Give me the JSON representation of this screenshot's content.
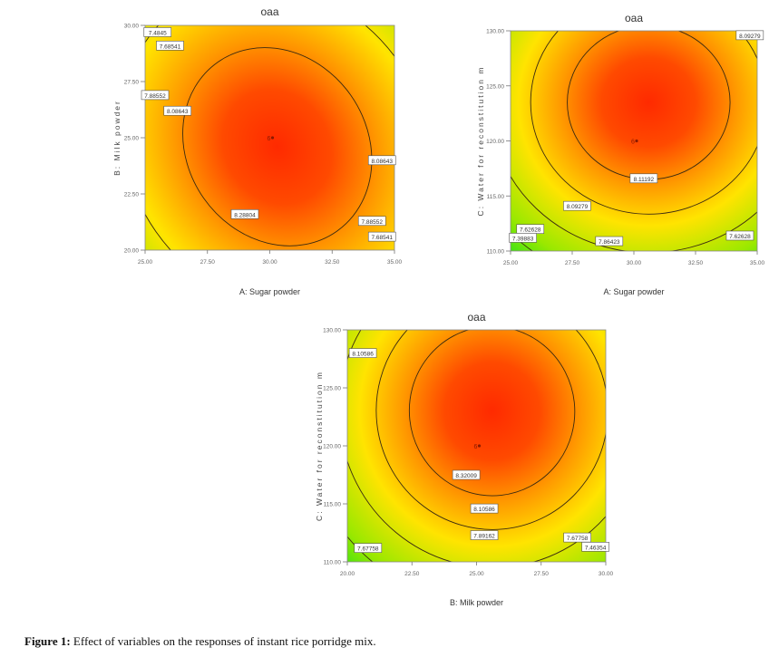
{
  "figure": {
    "caption_label": "Figure 1:",
    "caption_text": " Effect of variables on the responses of instant rice porridge mix."
  },
  "chart_data": [
    {
      "type": "heatmap",
      "subtype": "contour",
      "title": "oaa",
      "xlabel": "A: Sugar powder",
      "ylabel": "B: Milk powder",
      "xlim": [
        25.0,
        35.0
      ],
      "ylim": [
        20.0,
        30.0
      ],
      "x_ticks": [
        "25.00",
        "27.50",
        "30.00",
        "32.50",
        "35.00"
      ],
      "y_ticks": [
        "20.00",
        "22.50",
        "25.00",
        "27.50",
        "30.00"
      ],
      "optimum": {
        "x": 30.3,
        "y": 24.6
      },
      "ellipse": {
        "rx": 3.6,
        "ry": 4.6,
        "tilt_deg": -35
      },
      "center_point": {
        "x": 30.0,
        "y": 25.0,
        "label": "6"
      },
      "contours": [
        {
          "level": "8.28804",
          "scale": 1.0,
          "label_pos": {
            "x": 29.0,
            "y": 21.6
          }
        },
        {
          "level": "8.08643",
          "scale": 1.65,
          "label_pos": {
            "x": 26.3,
            "y": 26.2
          }
        },
        {
          "level": "8.08643",
          "scale": 1.65,
          "label_pos": {
            "x": 34.5,
            "y": 24.0
          }
        },
        {
          "level": "7.88552",
          "scale": 2.2,
          "label_pos": {
            "x": 25.4,
            "y": 26.9
          }
        },
        {
          "level": "7.88552",
          "scale": 2.2,
          "label_pos": {
            "x": 34.1,
            "y": 21.3
          }
        },
        {
          "level": "7.68541",
          "scale": 2.7,
          "label_pos": {
            "x": 26.0,
            "y": 29.1
          }
        },
        {
          "level": "7.68541",
          "scale": 2.7,
          "label_pos": {
            "x": 34.5,
            "y": 20.6
          }
        },
        {
          "level": "7.4845",
          "scale": 3.1,
          "label_pos": {
            "x": 25.5,
            "y": 29.7
          }
        }
      ],
      "color_scale": {
        "high": "#ff2a00",
        "mid": "#ffe400",
        "low": "#00e020"
      }
    },
    {
      "type": "heatmap",
      "subtype": "contour",
      "title": "oaa",
      "xlabel": "A: Sugar powder",
      "ylabel": "C: Water for reconstitution m",
      "xlim": [
        25.0,
        35.0
      ],
      "ylim": [
        110.0,
        130.0
      ],
      "x_ticks": [
        "25.00",
        "27.50",
        "30.00",
        "32.50",
        "35.00"
      ],
      "y_ticks": [
        "110.00",
        "115.00",
        "120.00",
        "125.00",
        "130.00"
      ],
      "optimum": {
        "x": 30.6,
        "y": 123.5
      },
      "ellipse": {
        "rx": 3.3,
        "ry": 7.0,
        "tilt_deg": 0
      },
      "center_point": {
        "x": 30.0,
        "y": 120.0,
        "label": "6"
      },
      "contours": [
        {
          "level": "8.11192",
          "scale": 1.0,
          "label_pos": {
            "x": 30.4,
            "y": 116.6
          }
        },
        {
          "level": "8.09279",
          "scale": 1.45,
          "label_pos": {
            "x": 27.7,
            "y": 114.1
          }
        },
        {
          "level": "8.09279",
          "scale": 1.45,
          "label_pos": {
            "x": 34.7,
            "y": 129.6
          }
        },
        {
          "level": "7.86423",
          "scale": 1.95,
          "label_pos": {
            "x": 29.0,
            "y": 110.9
          }
        },
        {
          "level": "7.62628",
          "scale": 2.4,
          "label_pos": {
            "x": 25.8,
            "y": 112.0
          }
        },
        {
          "level": "7.62628",
          "scale": 2.4,
          "label_pos": {
            "x": 34.3,
            "y": 111.4
          }
        },
        {
          "level": "7.39883",
          "scale": 2.85,
          "label_pos": {
            "x": 25.5,
            "y": 111.2
          }
        }
      ],
      "color_scale": {
        "high": "#ff2a00",
        "mid": "#ffe400",
        "low": "#00e020"
      }
    },
    {
      "type": "heatmap",
      "subtype": "contour",
      "title": "oaa",
      "xlabel": "B: Milk powder",
      "ylabel": "C: Water for reconstitution m",
      "xlim": [
        20.0,
        30.0
      ],
      "ylim": [
        110.0,
        130.0
      ],
      "x_ticks": [
        "20.00",
        "22.50",
        "25.00",
        "27.50",
        "30.00"
      ],
      "y_ticks": [
        "110.00",
        "115.00",
        "120.00",
        "125.00",
        "130.00"
      ],
      "optimum": {
        "x": 25.6,
        "y": 123.0
      },
      "ellipse": {
        "rx": 3.2,
        "ry": 7.3,
        "tilt_deg": -6
      },
      "center_point": {
        "x": 25.0,
        "y": 120.0,
        "label": "6"
      },
      "contours": [
        {
          "level": "8.32009",
          "scale": 1.0,
          "label_pos": {
            "x": 24.6,
            "y": 117.5
          }
        },
        {
          "level": "8.10586",
          "scale": 1.4,
          "label_pos": {
            "x": 25.3,
            "y": 114.6
          }
        },
        {
          "level": "8.10586",
          "scale": 1.4,
          "label_pos": {
            "x": 20.6,
            "y": 128.0
          }
        },
        {
          "level": "7.89162",
          "scale": 1.85,
          "label_pos": {
            "x": 25.3,
            "y": 112.3
          }
        },
        {
          "level": "7.67758",
          "scale": 2.3,
          "label_pos": {
            "x": 20.8,
            "y": 111.2
          }
        },
        {
          "level": "7.67758",
          "scale": 2.3,
          "label_pos": {
            "x": 28.9,
            "y": 112.1
          }
        },
        {
          "level": "7.46354",
          "scale": 2.75,
          "label_pos": {
            "x": 29.6,
            "y": 111.3
          }
        }
      ],
      "color_scale": {
        "high": "#ff2a00",
        "mid": "#ffe400",
        "low": "#00e020"
      }
    }
  ]
}
